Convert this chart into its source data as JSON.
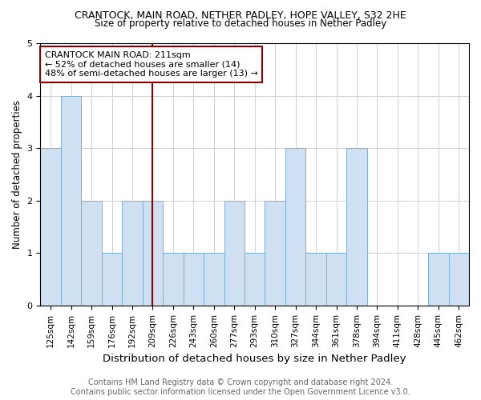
{
  "title1": "CRANTOCK, MAIN ROAD, NETHER PADLEY, HOPE VALLEY, S32 2HE",
  "title2": "Size of property relative to detached houses in Nether Padley",
  "xlabel": "Distribution of detached houses by size in Nether Padley",
  "ylabel": "Number of detached properties",
  "footer1": "Contains HM Land Registry data © Crown copyright and database right 2024.",
  "footer2": "Contains public sector information licensed under the Open Government Licence v3.0.",
  "annotation_line1": "CRANTOCK MAIN ROAD: 211sqm",
  "annotation_line2": "← 52% of detached houses are smaller (14)",
  "annotation_line3": "48% of semi-detached houses are larger (13) →",
  "categories": [
    "125sqm",
    "142sqm",
    "159sqm",
    "176sqm",
    "192sqm",
    "209sqm",
    "226sqm",
    "243sqm",
    "260sqm",
    "277sqm",
    "293sqm",
    "310sqm",
    "327sqm",
    "344sqm",
    "361sqm",
    "378sqm",
    "394sqm",
    "411sqm",
    "428sqm",
    "445sqm",
    "462sqm"
  ],
  "values": [
    3,
    4,
    2,
    1,
    2,
    2,
    1,
    1,
    1,
    2,
    1,
    2,
    3,
    1,
    1,
    3,
    0,
    0,
    0,
    1,
    1
  ],
  "bar_color": "#cfe0f3",
  "bar_edge_color": "#7bafd4",
  "vline_x_index": 5,
  "vline_color": "#8b0000",
  "ylim": [
    0,
    5
  ],
  "yticks": [
    0,
    1,
    2,
    3,
    4,
    5
  ],
  "grid_color": "#d0d0d0",
  "background_color": "#ffffff",
  "annotation_box_color": "#ffffff",
  "annotation_box_edge": "#8b0000",
  "title1_fontsize": 9,
  "title2_fontsize": 8.5,
  "xlabel_fontsize": 9.5,
  "ylabel_fontsize": 8.5,
  "tick_fontsize": 7.5,
  "footer_fontsize": 7,
  "annotation_fontsize": 8
}
